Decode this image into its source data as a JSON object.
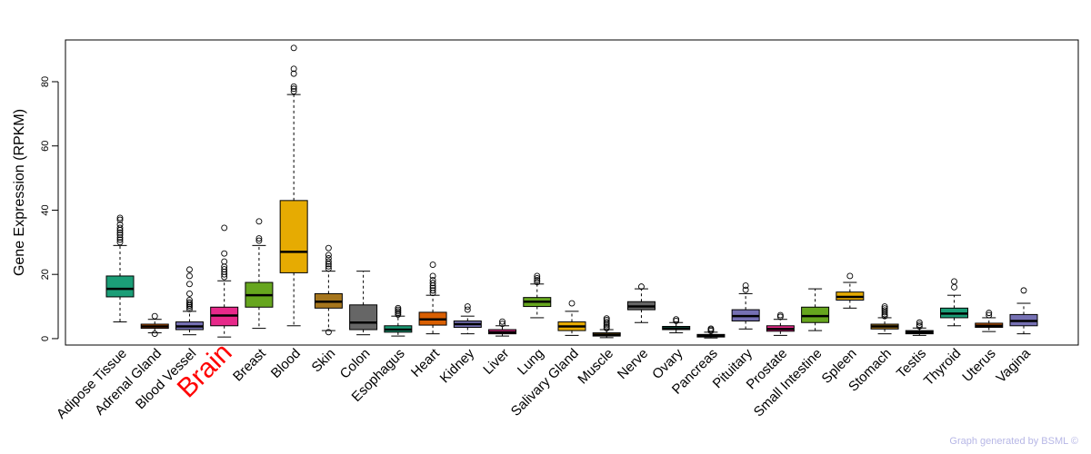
{
  "chart_data": {
    "type": "boxplot",
    "title": "",
    "xlabel": "",
    "ylabel": "Gene Expression (RPKM)",
    "ylim": [
      -2,
      93
    ],
    "yticks": [
      0,
      20,
      40,
      60,
      80
    ],
    "grid": false,
    "highlight": "Brain",
    "highlight_color": "#ff0000",
    "categories": [
      "Adipose Tissue",
      "Adrenal Gland",
      "Blood Vessel",
      "Brain",
      "Breast",
      "Blood",
      "Skin",
      "Colon",
      "Esophagus",
      "Heart",
      "Kidney",
      "Liver",
      "Lung",
      "Salivary Gland",
      "Muscle",
      "Nerve",
      "Ovary",
      "Pancreas",
      "Pituitary",
      "Prostate",
      "Small Intestine",
      "Spleen",
      "Stomach",
      "Testis",
      "Thyroid",
      "Uterus",
      "Vagina"
    ],
    "colors": [
      "#1b9e77",
      "#d95f02",
      "#7570b3",
      "#e7298a",
      "#66a61e",
      "#e6ab02",
      "#a6761d",
      "#666666",
      "#1b9e77",
      "#d95f02",
      "#7570b3",
      "#e7298a",
      "#66a61e",
      "#e6ab02",
      "#a6761d",
      "#666666",
      "#1b9e77",
      "#d95f02",
      "#7570b3",
      "#e7298a",
      "#66a61e",
      "#e6ab02",
      "#a6761d",
      "#666666",
      "#1b9e77",
      "#d95f02",
      "#7570b3"
    ],
    "boxes": [
      {
        "q1": 13.0,
        "median": 15.5,
        "q3": 19.5,
        "whislo": 5.2,
        "whishi": 29.0,
        "outliers": [
          30,
          30.8,
          31.5,
          32.3,
          33,
          33.8,
          34.5,
          35.5,
          37,
          37.6
        ]
      },
      {
        "q1": 3.2,
        "median": 3.8,
        "q3": 4.5,
        "whislo": 1.8,
        "whishi": 6.0,
        "outliers": [
          7.0,
          1.5
        ]
      },
      {
        "q1": 2.8,
        "median": 3.8,
        "q3": 5.2,
        "whislo": 1.2,
        "whishi": 8.5,
        "outliers": [
          9.2,
          9.8,
          10.3,
          10.8,
          11.3,
          12,
          14,
          17,
          19.5,
          21.5
        ]
      },
      {
        "q1": 4.0,
        "median": 7.2,
        "q3": 9.8,
        "whislo": 0.5,
        "whishi": 18.0,
        "outliers": [
          19.2,
          20,
          20.8,
          21.6,
          22.4,
          24,
          26.5,
          34.5
        ]
      },
      {
        "q1": 9.8,
        "median": 13.5,
        "q3": 17.5,
        "whislo": 3.2,
        "whishi": 29.0,
        "outliers": [
          30.5,
          31.2,
          36.5
        ]
      },
      {
        "q1": 20.5,
        "median": 27.0,
        "q3": 43.0,
        "whislo": 4.0,
        "whishi": 76.0,
        "outliers": [
          77,
          77.8,
          78.5,
          82.5,
          84,
          90.5
        ]
      },
      {
        "q1": 9.5,
        "median": 11.5,
        "q3": 14.0,
        "whislo": 2.5,
        "whishi": 21.0,
        "outliers": [
          21.8,
          22.5,
          23.2,
          24,
          25,
          26,
          28.2,
          2.0
        ]
      },
      {
        "q1": 2.8,
        "median": 5.0,
        "q3": 10.5,
        "whislo": 1.2,
        "whishi": 21.0,
        "outliers": []
      },
      {
        "q1": 2.0,
        "median": 2.8,
        "q3": 4.0,
        "whislo": 0.8,
        "whishi": 7.0,
        "outliers": [
          7.5,
          8,
          8.5,
          9,
          9.5
        ]
      },
      {
        "q1": 4.2,
        "median": 6.0,
        "q3": 8.2,
        "whislo": 1.5,
        "whishi": 13.5,
        "outliers": [
          14.2,
          15,
          15.8,
          16.5,
          17.3,
          18.2,
          19.5,
          23
        ]
      },
      {
        "q1": 3.5,
        "median": 4.5,
        "q3": 5.5,
        "whislo": 1.5,
        "whishi": 7.0,
        "outliers": [
          9.0,
          10.0
        ]
      },
      {
        "q1": 1.5,
        "median": 2.0,
        "q3": 2.8,
        "whislo": 0.8,
        "whishi": 4.0,
        "outliers": [
          4.6,
          5.3
        ]
      },
      {
        "q1": 10.0,
        "median": 11.5,
        "q3": 12.8,
        "whislo": 6.5,
        "whishi": 17.0,
        "outliers": [
          17.6,
          18.2,
          18.8,
          19.5
        ]
      },
      {
        "q1": 2.5,
        "median": 3.8,
        "q3": 5.2,
        "whislo": 1.0,
        "whishi": 8.5,
        "outliers": [
          11.0
        ]
      },
      {
        "q1": 0.8,
        "median": 1.2,
        "q3": 1.8,
        "whislo": 0.3,
        "whishi": 2.8,
        "outliers": [
          3.2,
          3.7,
          4.2,
          4.7,
          5.2,
          5.8,
          6.3
        ]
      },
      {
        "q1": 9.0,
        "median": 10.0,
        "q3": 11.5,
        "whislo": 5.0,
        "whishi": 15.5,
        "outliers": [
          16.2
        ]
      },
      {
        "q1": 2.8,
        "median": 3.2,
        "q3": 3.8,
        "whislo": 1.8,
        "whishi": 5.0,
        "outliers": [
          5.5,
          6.0
        ]
      },
      {
        "q1": 0.5,
        "median": 0.9,
        "q3": 1.3,
        "whislo": 0.2,
        "whishi": 2.0,
        "outliers": [
          2.4,
          2.8,
          3.1
        ]
      },
      {
        "q1": 5.5,
        "median": 7.0,
        "q3": 9.0,
        "whislo": 3.0,
        "whishi": 14.0,
        "outliers": [
          15.2,
          16.5
        ]
      },
      {
        "q1": 2.3,
        "median": 3.0,
        "q3": 4.0,
        "whislo": 1.0,
        "whishi": 6.0,
        "outliers": [
          6.8,
          7.3
        ]
      },
      {
        "q1": 5.0,
        "median": 7.0,
        "q3": 9.8,
        "whislo": 2.5,
        "whishi": 15.5,
        "outliers": []
      },
      {
        "q1": 12.0,
        "median": 13.0,
        "q3": 14.5,
        "whislo": 9.5,
        "whishi": 17.5,
        "outliers": [
          19.5
        ]
      },
      {
        "q1": 3.0,
        "median": 3.8,
        "q3": 4.5,
        "whislo": 1.5,
        "whishi": 6.5,
        "outliers": [
          7,
          7.6,
          8.2,
          8.8,
          9.4,
          10
        ]
      },
      {
        "q1": 1.5,
        "median": 2.0,
        "q3": 2.5,
        "whislo": 1.0,
        "whishi": 3.3,
        "outliers": [
          3.8,
          4.3,
          5.0
        ]
      },
      {
        "q1": 6.5,
        "median": 7.8,
        "q3": 9.5,
        "whislo": 4.0,
        "whishi": 13.5,
        "outliers": [
          16.0,
          17.8
        ]
      },
      {
        "q1": 3.5,
        "median": 4.0,
        "q3": 4.8,
        "whislo": 2.2,
        "whishi": 6.5,
        "outliers": [
          7.3,
          8.0
        ]
      },
      {
        "q1": 4.0,
        "median": 5.5,
        "q3": 7.5,
        "whislo": 1.5,
        "whishi": 11.0,
        "outliers": [
          15.0
        ]
      }
    ]
  },
  "footer": {
    "credit": "Graph generated by BSML ©"
  }
}
